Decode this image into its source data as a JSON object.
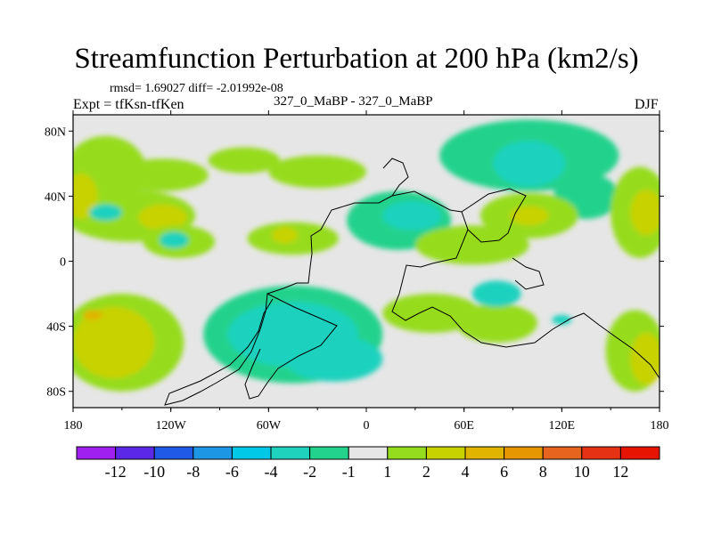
{
  "header": {
    "title": "Streamfunction Perturbation at 200 hPa (km2/s)",
    "stats": "rmsd= 1.69027 diff= -2.01992e-08",
    "experiment": "Expt = tfKsn-tfKen",
    "center": "327_0_MaBP - 327_0_MaBP",
    "season": "DJF"
  },
  "chart_data": {
    "type": "filled-contour-map",
    "title": "Streamfunction Perturbation at 200 hPa (km2/s)",
    "projection": "cylindrical equidistant",
    "xlim": [
      -180,
      180
    ],
    "ylim": [
      -90,
      90
    ],
    "x_ticks": [
      {
        "value": -180,
        "label": "180"
      },
      {
        "value": -120,
        "label": "120W"
      },
      {
        "value": -60,
        "label": "60W"
      },
      {
        "value": 0,
        "label": "0"
      },
      {
        "value": 60,
        "label": "60E"
      },
      {
        "value": 120,
        "label": "120E"
      },
      {
        "value": 180,
        "label": "180"
      }
    ],
    "y_ticks": [
      {
        "value": 80,
        "label": "80N"
      },
      {
        "value": 40,
        "label": "40N"
      },
      {
        "value": 0,
        "label": "0"
      },
      {
        "value": -40,
        "label": "40S"
      },
      {
        "value": -80,
        "label": "80S"
      }
    ],
    "colorbar": {
      "levels": [
        "-12",
        "-10",
        "-8",
        "-6",
        "-4",
        "-2",
        "-1",
        "1",
        "2",
        "4",
        "6",
        "8",
        "10",
        "12"
      ],
      "colors": [
        "#a020f0",
        "#5a28e6",
        "#1e5ae6",
        "#1e96e6",
        "#00c8e6",
        "#1ed2be",
        "#23d28c",
        "#e6e6e6",
        "#96dc1e",
        "#c8d200",
        "#e1b400",
        "#e69600",
        "#e6641e",
        "#e63214",
        "#e61400"
      ]
    },
    "regions": [
      {
        "level": 2,
        "lon": -160,
        "lat": 55,
        "rx": 25,
        "ry": 22
      },
      {
        "level": 2,
        "lon": -125,
        "lat": 53,
        "rx": 28,
        "ry": 10
      },
      {
        "level": 2,
        "lon": -75,
        "lat": 62,
        "rx": 22,
        "ry": 8
      },
      {
        "level": 2,
        "lon": -30,
        "lat": 55,
        "rx": 30,
        "ry": 10
      },
      {
        "level": 2,
        "lon": -145,
        "lat": 28,
        "rx": 40,
        "ry": 16
      },
      {
        "level": 4,
        "lon": -125,
        "lat": 27,
        "rx": 15,
        "ry": 8
      },
      {
        "level": 4,
        "lon": -175,
        "lat": 40,
        "rx": 10,
        "ry": 14
      },
      {
        "level": -2,
        "lon": -160,
        "lat": 30,
        "rx": 10,
        "ry": 5
      },
      {
        "level": 2,
        "lon": -115,
        "lat": 12,
        "rx": 22,
        "ry": 10
      },
      {
        "level": -2,
        "lon": -118,
        "lat": 13,
        "rx": 9,
        "ry": 5
      },
      {
        "level": 2,
        "lon": -45,
        "lat": 14,
        "rx": 28,
        "ry": 10
      },
      {
        "level": 4,
        "lon": -50,
        "lat": 16,
        "rx": 8,
        "ry": 5
      },
      {
        "level": -1,
        "lon": 20,
        "lat": 25,
        "rx": 32,
        "ry": 18
      },
      {
        "level": -2,
        "lon": 28,
        "lat": 28,
        "rx": 18,
        "ry": 9
      },
      {
        "level": -1,
        "lon": 100,
        "lat": 65,
        "rx": 55,
        "ry": 22
      },
      {
        "level": -2,
        "lon": 100,
        "lat": 60,
        "rx": 22,
        "ry": 14
      },
      {
        "level": -1,
        "lon": 135,
        "lat": 40,
        "rx": 20,
        "ry": 14
      },
      {
        "level": 2,
        "lon": 65,
        "lat": 10,
        "rx": 35,
        "ry": 12
      },
      {
        "level": 2,
        "lon": 100,
        "lat": 28,
        "rx": 30,
        "ry": 14
      },
      {
        "level": 4,
        "lon": 100,
        "lat": 28,
        "rx": 12,
        "ry": 6
      },
      {
        "level": 2,
        "lon": 168,
        "lat": 30,
        "rx": 18,
        "ry": 28
      },
      {
        "level": 4,
        "lon": 172,
        "lat": 30,
        "rx": 10,
        "ry": 14
      },
      {
        "level": 2,
        "lon": -150,
        "lat": -50,
        "rx": 38,
        "ry": 30
      },
      {
        "level": 4,
        "lon": -155,
        "lat": -50,
        "rx": 25,
        "ry": 22
      },
      {
        "level": 6,
        "lon": -168,
        "lat": -33,
        "rx": 6,
        "ry": 3
      },
      {
        "level": -1,
        "lon": -45,
        "lat": -45,
        "rx": 55,
        "ry": 30
      },
      {
        "level": -2,
        "lon": -45,
        "lat": -45,
        "rx": 40,
        "ry": 20
      },
      {
        "level": -2,
        "lon": -20,
        "lat": -60,
        "rx": 30,
        "ry": 14
      },
      {
        "level": 2,
        "lon": 40,
        "lat": -32,
        "rx": 30,
        "ry": 12
      },
      {
        "level": 2,
        "lon": 80,
        "lat": -38,
        "rx": 25,
        "ry": 12
      },
      {
        "level": -2,
        "lon": 80,
        "lat": -20,
        "rx": 15,
        "ry": 8
      },
      {
        "level": 2,
        "lon": 165,
        "lat": -55,
        "rx": 18,
        "ry": 25
      },
      {
        "level": 4,
        "lon": 172,
        "lat": -60,
        "rx": 10,
        "ry": 16
      },
      {
        "level": -2,
        "lon": 120,
        "lat": -36,
        "rx": 6,
        "ry": 3
      }
    ]
  }
}
